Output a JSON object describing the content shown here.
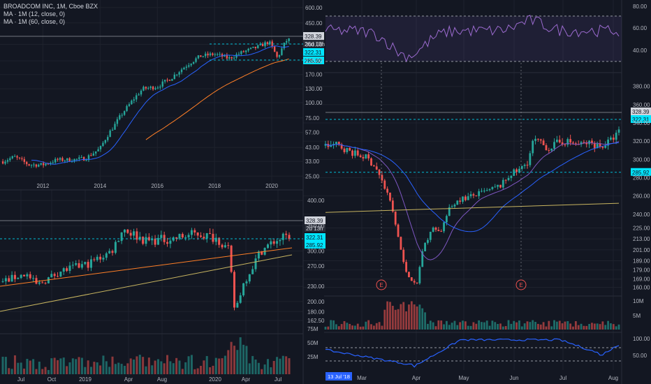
{
  "legend": {
    "title": "BROADCOM INC, 1M, Cboe BZX",
    "ma12": "MA · 1M (12, close, 0)",
    "ma60": "MA · 1M (60, close, 0)"
  },
  "colors": {
    "background": "#131722",
    "grid": "#1e222d",
    "divider": "#2a2e39",
    "axis_text": "#b2b5be",
    "up": "#26a69a",
    "down": "#ef5350",
    "ma_blue": "#2962ff",
    "ma_orange": "#ff7f27",
    "trend_yellow": "#c8b560",
    "dash_white": "#9598a1",
    "dash_cyan": "#00bcd4",
    "rsi": "#9c6bd0",
    "price_tag_gray": "#d1d4dc",
    "price_tag_cyan": "#00e5ff"
  },
  "chart_data": [
    {
      "id": "monthly",
      "type": "candlestick",
      "scale": "log",
      "y_ticks": [
        25.0,
        33.0,
        43.0,
        57.0,
        75.0,
        100.0,
        130.0,
        170.0,
        220.0,
        300.0,
        450.0,
        600.0
      ],
      "ylim": [
        22,
        640
      ],
      "x_ticks": [
        "2012",
        "2014",
        "2016",
        "2018",
        "2020"
      ],
      "x_start": 2010.5,
      "x_end": 2021.0,
      "tags": {
        "last_price": "328.39",
        "countdown": "26d 13h",
        "level_1": "322.31",
        "level_2": "285.92"
      },
      "note": "Broadcom monthly candles from about 2010.6 to mid 2020, price estimated from log axis"
    },
    {
      "id": "daily_wide",
      "type": "candlestick",
      "y_ticks": [
        162.5,
        180.0,
        200.0,
        230.0,
        270.0,
        300.0,
        350.0,
        400.0
      ],
      "x_ticks": [
        "Jul",
        "Oct",
        "2019",
        "Apr",
        "Aug",
        "2020",
        "Apr",
        "Jul"
      ],
      "tags": {
        "last_price": "328.39",
        "countdown": "2d 13h",
        "level_1": "322.31",
        "level_2": "285.92"
      },
      "volume_ticks": [
        "75M",
        "50M",
        "25M"
      ]
    },
    {
      "id": "daily_zoom",
      "type": "candlestick",
      "y_ticks": [
        160.0,
        169.0,
        179.0,
        189.0,
        201.0,
        213.0,
        225.0,
        240.0,
        260.0,
        280.0,
        300.0,
        320.0,
        340.0,
        360.0,
        380.0
      ],
      "ylim": [
        155,
        392
      ],
      "x_ticks": [
        "Mar",
        "Apr",
        "May",
        "Jun",
        "Jul",
        "Aug"
      ],
      "crosshair_date": "13 Jul '18",
      "tags": {
        "last_price": "328.39",
        "level_1": "322.31",
        "level_2": "285.92"
      },
      "earnings_marker": "E",
      "rsi_ticks": [
        "80.00",
        "60.00",
        "40.00"
      ],
      "volume_ticks": [
        "10M",
        "5M"
      ],
      "osc_ticks": [
        "100.00",
        "50.00"
      ],
      "path": [
        [
          0,
          315
        ],
        [
          0.04,
          316
        ],
        [
          0.08,
          309
        ],
        [
          0.11,
          305
        ],
        [
          0.14,
          302
        ],
        [
          0.17,
          292
        ],
        [
          0.2,
          270
        ],
        [
          0.22,
          255
        ],
        [
          0.25,
          212
        ],
        [
          0.27,
          180
        ],
        [
          0.29,
          170
        ],
        [
          0.31,
          160
        ],
        [
          0.33,
          200
        ],
        [
          0.35,
          213
        ],
        [
          0.37,
          228
        ],
        [
          0.39,
          219
        ],
        [
          0.42,
          244
        ],
        [
          0.45,
          256
        ],
        [
          0.48,
          258
        ],
        [
          0.52,
          262
        ],
        [
          0.56,
          266
        ],
        [
          0.6,
          272
        ],
        [
          0.63,
          284
        ],
        [
          0.66,
          288
        ],
        [
          0.69,
          298
        ],
        [
          0.71,
          322
        ],
        [
          0.73,
          318
        ],
        [
          0.76,
          312
        ],
        [
          0.79,
          318
        ],
        [
          0.82,
          320
        ],
        [
          0.86,
          316
        ],
        [
          0.9,
          318
        ],
        [
          0.94,
          314
        ],
        [
          0.97,
          320
        ],
        [
          1.0,
          330
        ]
      ]
    }
  ]
}
